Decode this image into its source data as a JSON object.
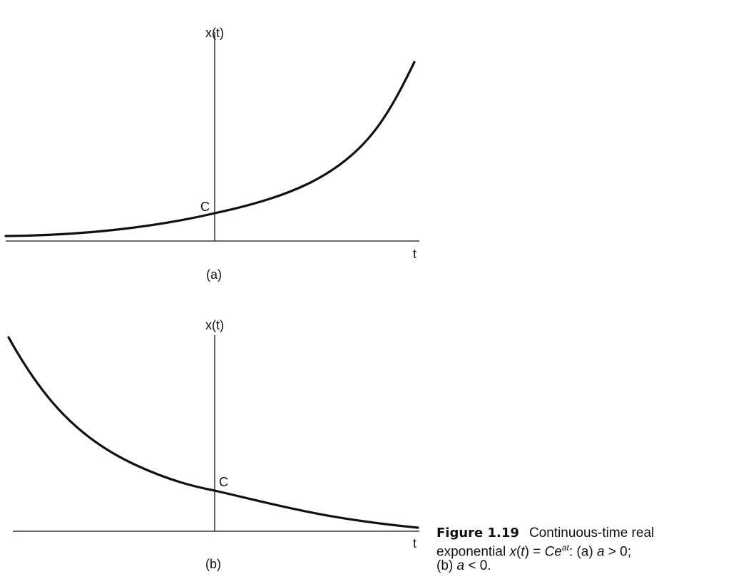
{
  "figure": {
    "label": "Figure 1.19",
    "caption_lines": [
      "Continuous-time real",
      "exponential x(t) = Ce^{at}: (a) a > 0;",
      "(b) a < 0."
    ]
  },
  "panels": [
    {
      "id": "a",
      "ylabel": "x(t)",
      "xlabel": "t",
      "point_label": "C",
      "sublabel": "(a)",
      "sign": "a > 0"
    },
    {
      "id": "b",
      "ylabel": "x(t)",
      "xlabel": "t",
      "point_label": "C",
      "sublabel": "(b)",
      "sign": "a < 0"
    }
  ]
}
